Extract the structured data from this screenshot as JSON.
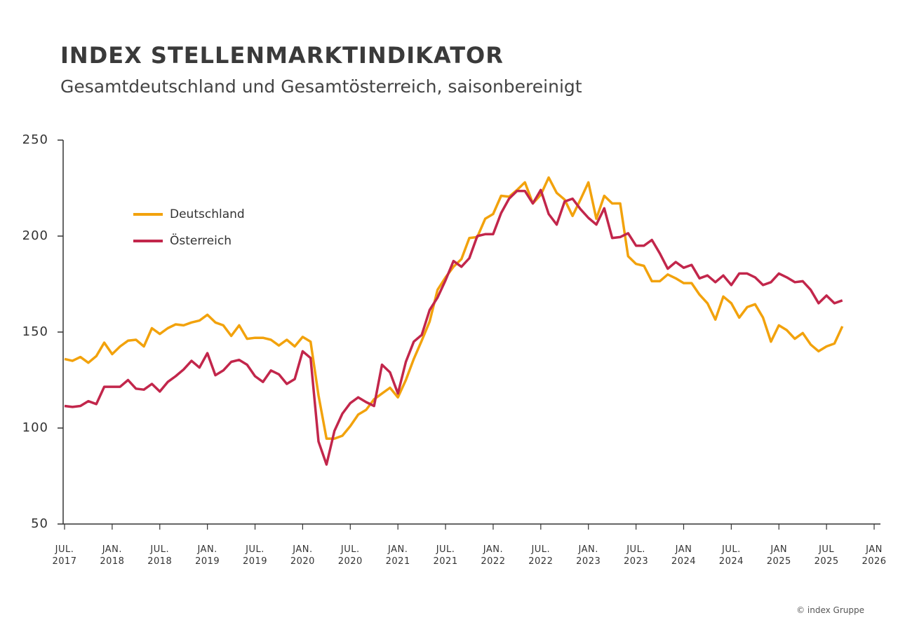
{
  "chart_data": {
    "type": "line",
    "title": "INDEX STELLENMARKTINDIKATOR",
    "subtitle": "Gesamtdeutschland und Gesamtösterreich, saisonbereinigt",
    "source": "© index Gruppe",
    "x": [
      "2017-07",
      "2017-08",
      "2017-09",
      "2017-10",
      "2017-11",
      "2017-12",
      "2018-01",
      "2018-02",
      "2018-03",
      "2018-04",
      "2018-05",
      "2018-06",
      "2018-07",
      "2018-08",
      "2018-09",
      "2018-10",
      "2018-11",
      "2018-12",
      "2019-01",
      "2019-02",
      "2019-03",
      "2019-04",
      "2019-05",
      "2019-06",
      "2019-07",
      "2019-08",
      "2019-09",
      "2019-10",
      "2019-11",
      "2019-12",
      "2020-01",
      "2020-02",
      "2020-03",
      "2020-04",
      "2020-05",
      "2020-06",
      "2020-07",
      "2020-08",
      "2020-09",
      "2020-10",
      "2020-11",
      "2020-12",
      "2021-01",
      "2021-02",
      "2021-03",
      "2021-04",
      "2021-05",
      "2021-06",
      "2021-07",
      "2021-08",
      "2021-09",
      "2021-10",
      "2021-11",
      "2021-12",
      "2022-01",
      "2022-02",
      "2022-03",
      "2022-04",
      "2022-05",
      "2022-06",
      "2022-07",
      "2022-08",
      "2022-09",
      "2022-10",
      "2022-11",
      "2022-12",
      "2023-01",
      "2023-02",
      "2023-03",
      "2023-04",
      "2023-05",
      "2023-06",
      "2023-07",
      "2023-08",
      "2023-09",
      "2023-10",
      "2023-11",
      "2023-12",
      "2024-01",
      "2024-02",
      "2024-03",
      "2024-04",
      "2024-05",
      "2024-06",
      "2024-07",
      "2024-08",
      "2024-09",
      "2024-10",
      "2024-11",
      "2024-12",
      "2025-01",
      "2025-02",
      "2025-03",
      "2025-04",
      "2025-05",
      "2025-06",
      "2025-07",
      "2025-08",
      "2025-09"
    ],
    "series": [
      {
        "name": "Deutschland",
        "color": "#f2a20c",
        "values": [
          136,
          135,
          137,
          134,
          137.5,
          144.5,
          138.5,
          142.5,
          145.5,
          146,
          142.5,
          152,
          149,
          152,
          154,
          153.5,
          155,
          156,
          159,
          155,
          153.5,
          148,
          153.5,
          146.5,
          147,
          147,
          146,
          143,
          146,
          142.5,
          147.5,
          145,
          117,
          94.5,
          94.5,
          96,
          101,
          107,
          109.5,
          115,
          118,
          121,
          116,
          125,
          136,
          145.5,
          155.5,
          172,
          178.5,
          184,
          188,
          199,
          199.5,
          209,
          211.5,
          221,
          220.5,
          224,
          228,
          217,
          221.5,
          230.5,
          222.5,
          219,
          210.5,
          219,
          228,
          209,
          221,
          217,
          217,
          189.5,
          185.5,
          184.5,
          176.5,
          176.5,
          180,
          178,
          175.5,
          175.5,
          169.5,
          165,
          156.5,
          168.5,
          165,
          157.5,
          163,
          164.5,
          157.5,
          145,
          153.5,
          151,
          146.5,
          149.5,
          143.5,
          140,
          142.5,
          144,
          153
        ]
      },
      {
        "name": "Österreich",
        "color": "#c2264b",
        "values": [
          111.5,
          111,
          111.5,
          114,
          112.5,
          121.5,
          121.5,
          121.5,
          125,
          120.5,
          120,
          123,
          119,
          124,
          127,
          130.5,
          135,
          131.5,
          139,
          127.5,
          130,
          134.5,
          135.5,
          133,
          127,
          124,
          130,
          128,
          123,
          125.5,
          140,
          136.5,
          93,
          81,
          98.5,
          107.5,
          113,
          116,
          113.5,
          111.5,
          133,
          129,
          118,
          134.5,
          145,
          148.5,
          161.5,
          168,
          177,
          187,
          184,
          188.5,
          200,
          201,
          201,
          212,
          219.5,
          223.5,
          223.5,
          217,
          224,
          211.5,
          206,
          218,
          219.5,
          214,
          209.5,
          206,
          214.5,
          199,
          199.5,
          201.5,
          195,
          195,
          198,
          191,
          183,
          186.5,
          183.5,
          185,
          178,
          179.5,
          176,
          179.5,
          174.5,
          180.5,
          180.5,
          178.5,
          174.5,
          176,
          180.5,
          178.5,
          176,
          176.5,
          172,
          165,
          169,
          165,
          166.5
        ]
      }
    ],
    "xlim": [
      "2017-07",
      "2026-01"
    ],
    "xticks": [
      {
        "value": "2017-07",
        "label": "JUL. 2017"
      },
      {
        "value": "2018-01",
        "label": "JAN. 2018"
      },
      {
        "value": "2018-07",
        "label": "JUL. 2018"
      },
      {
        "value": "2019-01",
        "label": "JAN. 2019"
      },
      {
        "value": "2019-07",
        "label": "JUL. 2019"
      },
      {
        "value": "2020-01",
        "label": "JAN. 2020"
      },
      {
        "value": "2020-07",
        "label": "JUL. 2020"
      },
      {
        "value": "2021-01",
        "label": "JAN. 2021"
      },
      {
        "value": "2021-07",
        "label": "JUL. 2021"
      },
      {
        "value": "2022-01",
        "label": "JAN. 2022"
      },
      {
        "value": "2022-07",
        "label": "JUL. 2022"
      },
      {
        "value": "2023-01",
        "label": "JAN. 2023"
      },
      {
        "value": "2023-07",
        "label": "JUL. 2023"
      },
      {
        "value": "2024-01",
        "label": "JAN 2024"
      },
      {
        "value": "2024-07",
        "label": "JUL. 2024"
      },
      {
        "value": "2025-01",
        "label": "JAN 2025"
      },
      {
        "value": "2025-07",
        "label": "JUL 2025"
      },
      {
        "value": "2026-01",
        "label": "JAN 2026"
      }
    ],
    "ylim": [
      50,
      250
    ],
    "yticks": [
      50,
      100,
      150,
      200,
      250
    ],
    "grid": false
  }
}
